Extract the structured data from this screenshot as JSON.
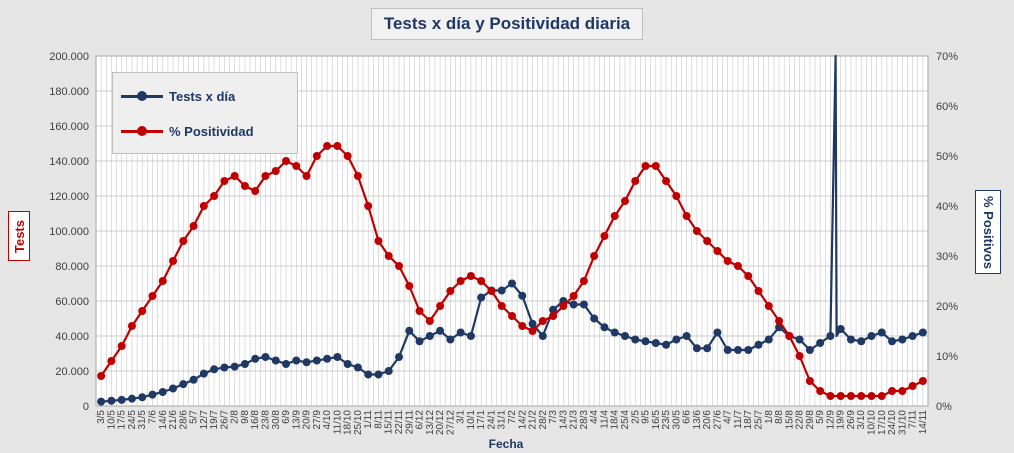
{
  "title": "Tests x día y Positividad  diaria",
  "ylabel_left": "Tests",
  "ylabel_right": "% Positivos",
  "xlabel": "Fecha",
  "legend": {
    "series1": "Tests x día",
    "series2": "% Positividad"
  },
  "colors": {
    "tests": "#1f3864",
    "positividad": "#c00000",
    "background": "#e6e6e6",
    "plot_background": "#ffffff",
    "grid": "#bfbfbf"
  },
  "chart_data": {
    "type": "line",
    "title": "Tests x día y Positividad  diaria",
    "xlabel": "Fecha",
    "ylabel": "Tests",
    "y2label": "% Positivos",
    "ylim": [
      0,
      200000
    ],
    "y2lim": [
      0,
      0.7
    ],
    "yticks": [
      "0",
      "20.000",
      "40.000",
      "60.000",
      "80.000",
      "100.000",
      "120.000",
      "140.000",
      "160.000",
      "180.000",
      "200.000"
    ],
    "y2ticks": [
      "0%",
      "10%",
      "20%",
      "30%",
      "40%",
      "50%",
      "60%",
      "70%"
    ],
    "x_tick_labels": [
      "3/5",
      "10/5",
      "17/5",
      "24/5",
      "31/5",
      "7/6",
      "14/6",
      "21/6",
      "28/6",
      "5/7",
      "12/7",
      "19/7",
      "26/7",
      "2/8",
      "9/8",
      "16/8",
      "23/8",
      "30/8",
      "6/9",
      "13/9",
      "20/9",
      "27/9",
      "4/10",
      "11/10",
      "18/10",
      "25/10",
      "1/11",
      "8/11",
      "15/11",
      "22/11",
      "29/11",
      "6/12",
      "13/12",
      "20/12",
      "27/12",
      "3/1",
      "10/1",
      "17/1",
      "24/1",
      "31/1",
      "7/2",
      "14/2",
      "21/2",
      "28/2",
      "7/3",
      "14/3",
      "21/3",
      "28/3",
      "4/4",
      "11/4",
      "18/4",
      "25/4",
      "2/5",
      "9/5",
      "16/5",
      "23/5",
      "30/5",
      "6/6",
      "13/6",
      "20/6",
      "27/6",
      "4/7",
      "11/7",
      "18/7",
      "25/7",
      "1/8",
      "8/8",
      "15/8",
      "22/8",
      "29/8",
      "5/9",
      "12/9",
      "19/9",
      "26/9",
      "3/10",
      "10/10",
      "17/10",
      "24/10",
      "31/10",
      "7/11",
      "14/11"
    ],
    "series": [
      {
        "name": "Tests x día",
        "axis": "left",
        "values": [
          2500,
          3000,
          3500,
          4200,
          5000,
          6500,
          8000,
          10000,
          12500,
          15000,
          18500,
          21000,
          22000,
          22500,
          24000,
          27000,
          28000,
          26000,
          24000,
          26000,
          25000,
          26000,
          27000,
          28000,
          24000,
          22000,
          18000,
          18000,
          20000,
          28000,
          43000,
          37000,
          40000,
          43000,
          38000,
          42000,
          40000,
          62000,
          66000,
          66000,
          70000,
          63000,
          47000,
          40000,
          55000,
          60000,
          58000,
          58000,
          50000,
          45000,
          42000,
          40000,
          38000,
          37000,
          36000,
          35000,
          38000,
          40000,
          33000,
          33000,
          42000,
          32000,
          32000,
          32000,
          35000,
          38000,
          45000,
          40000,
          38000,
          32000,
          36000,
          40000,
          44000,
          38000,
          37000,
          40000,
          42000,
          37000,
          38000,
          40000,
          42000
        ]
      },
      {
        "name": "% Positividad",
        "axis": "right",
        "values": [
          0.06,
          0.09,
          0.12,
          0.16,
          0.19,
          0.22,
          0.25,
          0.29,
          0.33,
          0.36,
          0.4,
          0.42,
          0.45,
          0.46,
          0.44,
          0.43,
          0.46,
          0.47,
          0.49,
          0.48,
          0.46,
          0.5,
          0.52,
          0.52,
          0.5,
          0.46,
          0.4,
          0.33,
          0.3,
          0.28,
          0.24,
          0.19,
          0.17,
          0.2,
          0.23,
          0.25,
          0.26,
          0.25,
          0.23,
          0.2,
          0.18,
          0.16,
          0.15,
          0.17,
          0.18,
          0.2,
          0.22,
          0.25,
          0.3,
          0.34,
          0.38,
          0.41,
          0.45,
          0.48,
          0.48,
          0.45,
          0.42,
          0.38,
          0.35,
          0.33,
          0.31,
          0.29,
          0.28,
          0.26,
          0.23,
          0.2,
          0.17,
          0.14,
          0.1,
          0.05,
          0.03,
          0.02,
          0.02,
          0.02,
          0.02,
          0.02,
          0.02,
          0.03,
          0.03,
          0.04,
          0.05
        ]
      }
    ],
    "spike": {
      "x": "12/9",
      "value": 200000
    },
    "grid": true,
    "legend_position": "top-left"
  }
}
